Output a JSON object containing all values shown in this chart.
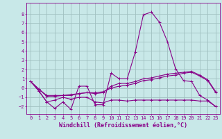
{
  "background_color": "#c8e8e8",
  "grid_color": "#a0c0c0",
  "line_color": "#880088",
  "xlabel": "Windchill (Refroidissement éolien,°C)",
  "ylim": [
    -2.8,
    9.2
  ],
  "xlim": [
    -0.5,
    23.5
  ],
  "yticks": [
    -2,
    -1,
    0,
    1,
    2,
    3,
    4,
    5,
    6,
    7,
    8
  ],
  "xticks": [
    0,
    1,
    2,
    3,
    4,
    5,
    6,
    7,
    8,
    9,
    10,
    11,
    12,
    13,
    14,
    15,
    16,
    17,
    18,
    19,
    20,
    21,
    22,
    23
  ],
  "series": [
    [
      0.7,
      -0.3,
      -1.5,
      -2.2,
      -1.5,
      -2.3,
      0.2,
      0.2,
      -1.8,
      -1.8,
      1.6,
      1.0,
      1.0,
      3.9,
      7.9,
      8.2,
      7.1,
      5.0,
      2.1,
      0.8,
      0.7,
      -0.8,
      -1.3,
      -2.0
    ],
    [
      0.7,
      -0.3,
      -1.5,
      -1.3,
      -1.0,
      -1.2,
      -1.0,
      -1.0,
      -1.5,
      -1.6,
      -1.3,
      -1.3,
      -1.4,
      -1.3,
      -1.3,
      -1.3,
      -1.3,
      -1.3,
      -1.3,
      -1.3,
      -1.3,
      -1.4,
      -1.4,
      -2.0
    ],
    [
      0.7,
      -0.1,
      -0.8,
      -0.8,
      -0.8,
      -0.8,
      -0.6,
      -0.5,
      -0.6,
      -0.5,
      0.2,
      0.5,
      0.5,
      0.7,
      1.0,
      1.1,
      1.3,
      1.5,
      1.6,
      1.7,
      1.8,
      1.4,
      0.9,
      -0.4
    ],
    [
      0.7,
      -0.1,
      -0.9,
      -0.9,
      -0.8,
      -0.7,
      -0.6,
      -0.5,
      -0.5,
      -0.4,
      0.0,
      0.2,
      0.3,
      0.5,
      0.8,
      0.9,
      1.1,
      1.3,
      1.4,
      1.6,
      1.7,
      1.3,
      0.8,
      -0.5
    ]
  ],
  "tick_fontsize": 5.0,
  "xlabel_fontsize": 6.0
}
